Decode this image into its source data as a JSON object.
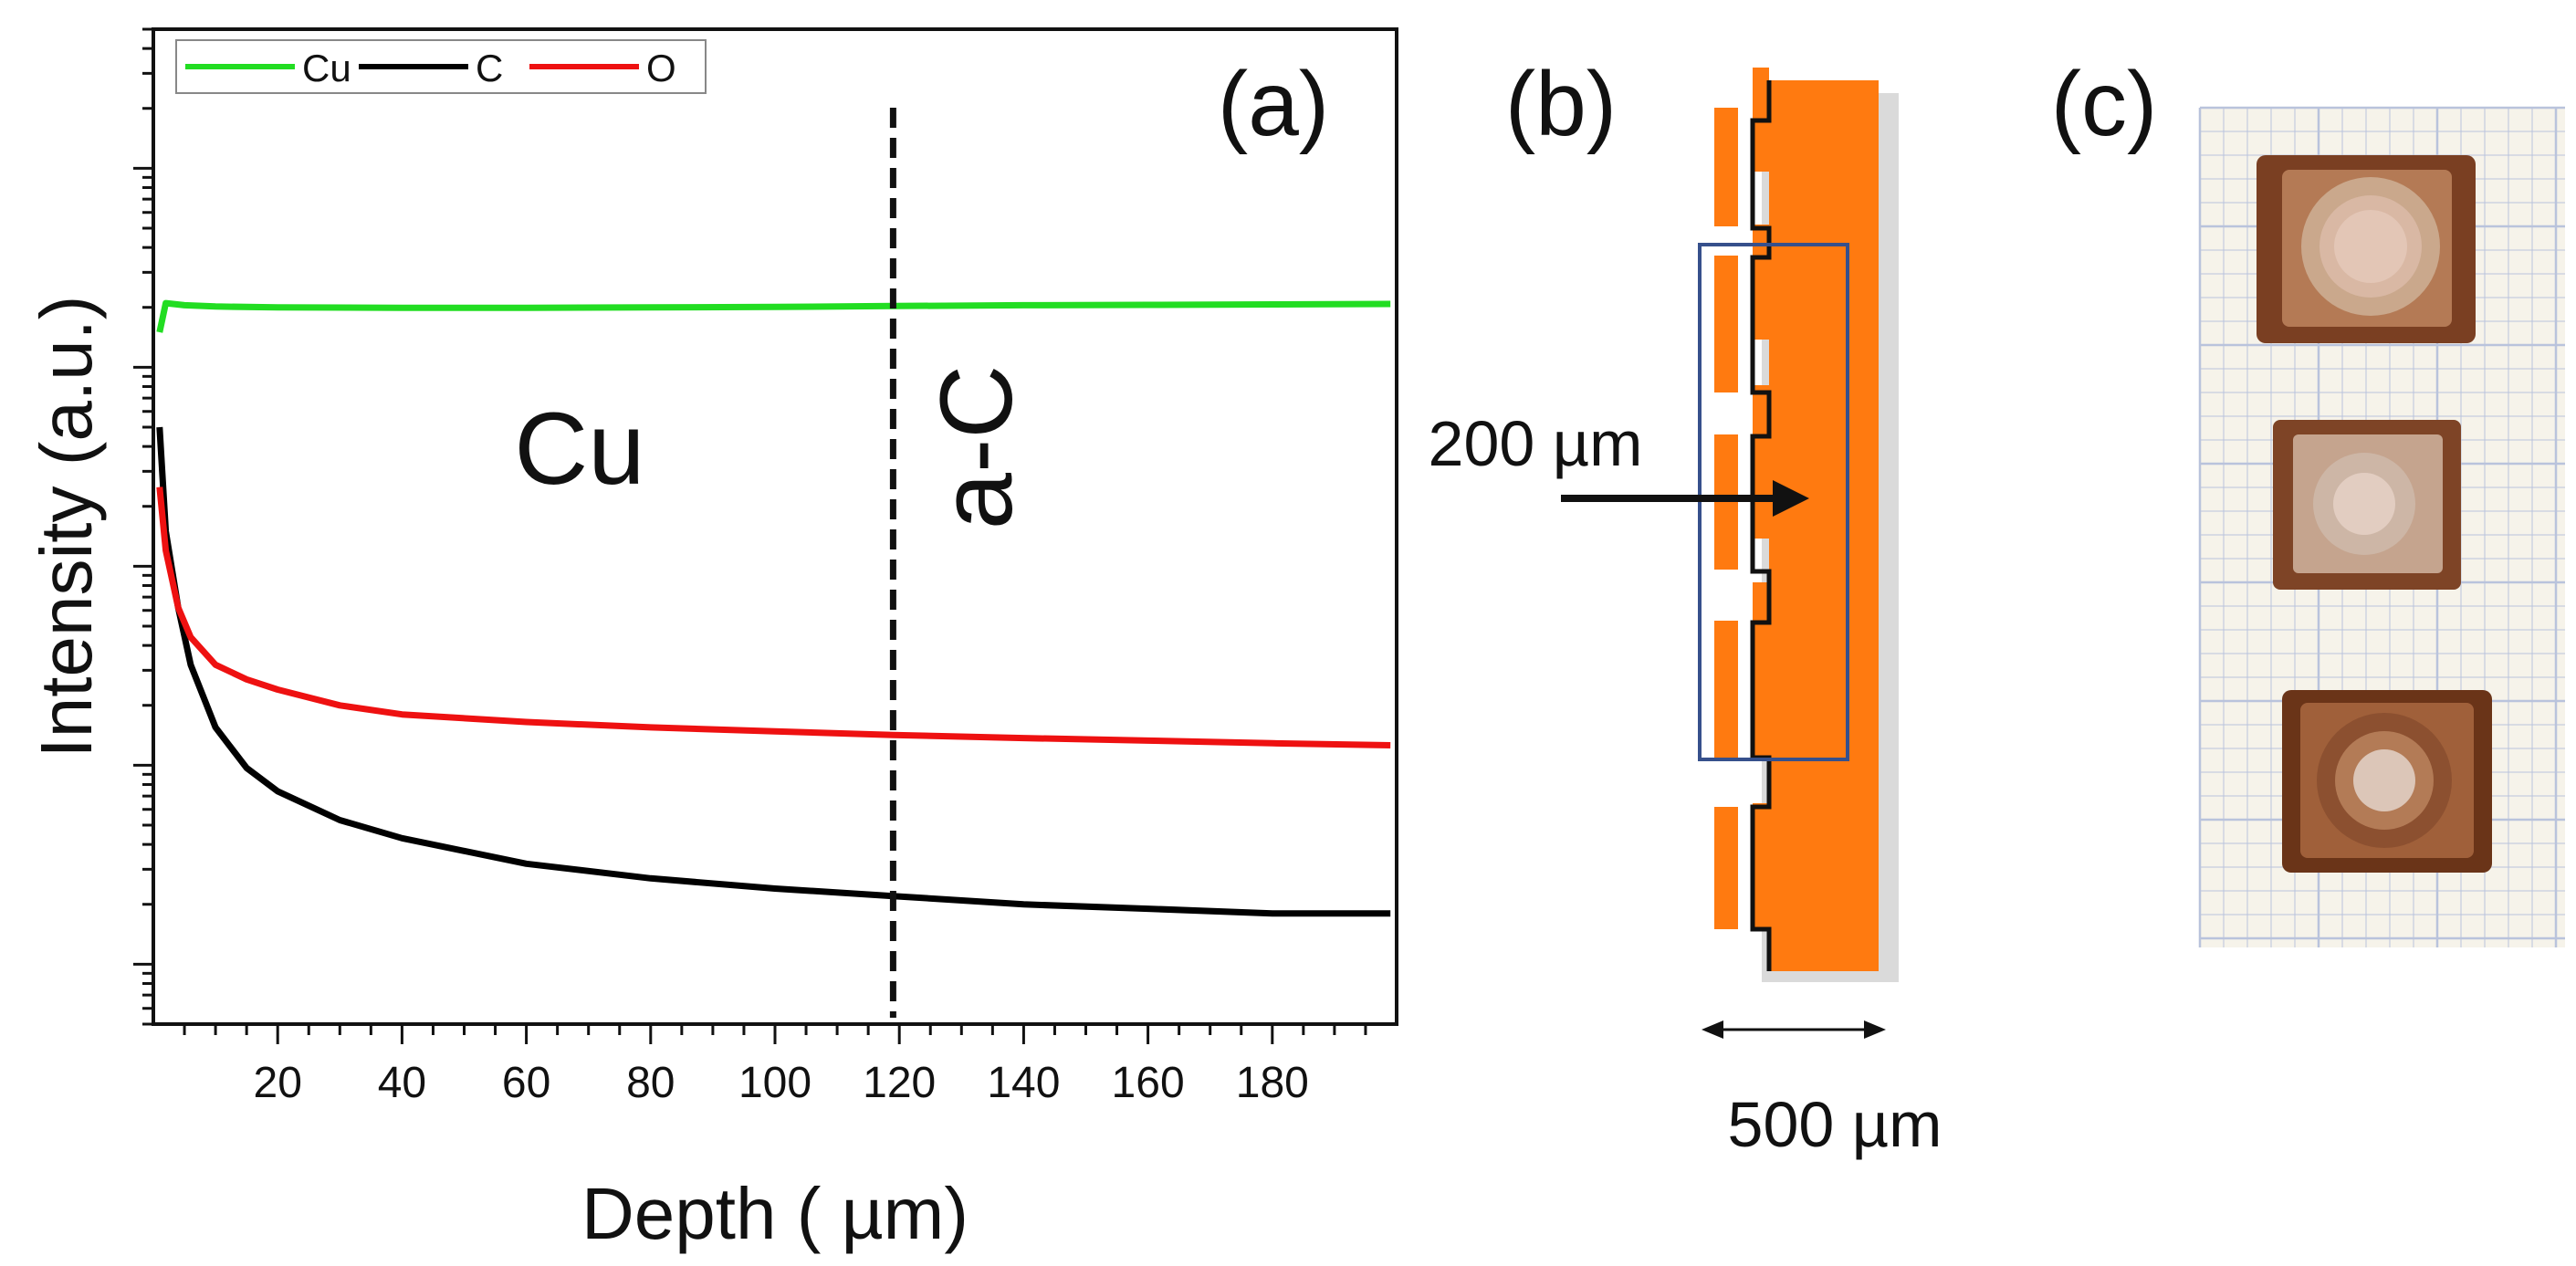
{
  "panels": {
    "a": {
      "label": "(a)"
    },
    "b": {
      "label": "(b)",
      "dim_top": "200 µm",
      "dim_bottom": "500 µm"
    },
    "c": {
      "label": "(c)"
    }
  },
  "chart_data": {
    "type": "line",
    "xlabel": "Depth ( µm)",
    "ylabel": "Intensity (a.u.)",
    "xlim": [
      0,
      200
    ],
    "ylog": true,
    "ylim": [
      0.0005,
      50
    ],
    "xticks": [
      20,
      40,
      60,
      80,
      100,
      120,
      140,
      160,
      180
    ],
    "tick_labels_y": false,
    "grid": false,
    "legend": {
      "position": "top-left"
    },
    "annotations": {
      "left_region": "Cu",
      "right_region": "a-C",
      "divider_x": 119
    },
    "series": [
      {
        "name": "Cu",
        "color": "#22dd22",
        "x": [
          1,
          2,
          5,
          10,
          20,
          40,
          60,
          80,
          100,
          119,
          140,
          160,
          180,
          199
        ],
        "y": [
          1.5,
          2.1,
          2.05,
          2.02,
          2.0,
          1.99,
          1.99,
          2.0,
          2.01,
          2.03,
          2.05,
          2.06,
          2.07,
          2.08
        ]
      },
      {
        "name": "C",
        "color": "#000000",
        "x": [
          1,
          2,
          4,
          6,
          10,
          15,
          20,
          30,
          40,
          60,
          80,
          100,
          119,
          140,
          160,
          180,
          199
        ],
        "y": [
          0.5,
          0.15,
          0.062,
          0.032,
          0.0155,
          0.0097,
          0.0074,
          0.0053,
          0.0043,
          0.0032,
          0.0027,
          0.0024,
          0.0022,
          0.002,
          0.0019,
          0.0018,
          0.0018
        ]
      },
      {
        "name": "O",
        "color": "#ee1111",
        "x": [
          1,
          2,
          4,
          6,
          10,
          15,
          20,
          30,
          40,
          60,
          80,
          100,
          119,
          140,
          160,
          180,
          199
        ],
        "y": [
          0.25,
          0.12,
          0.062,
          0.044,
          0.032,
          0.027,
          0.024,
          0.02,
          0.018,
          0.0165,
          0.0155,
          0.0148,
          0.0142,
          0.0137,
          0.0133,
          0.0129,
          0.0126
        ]
      }
    ]
  }
}
